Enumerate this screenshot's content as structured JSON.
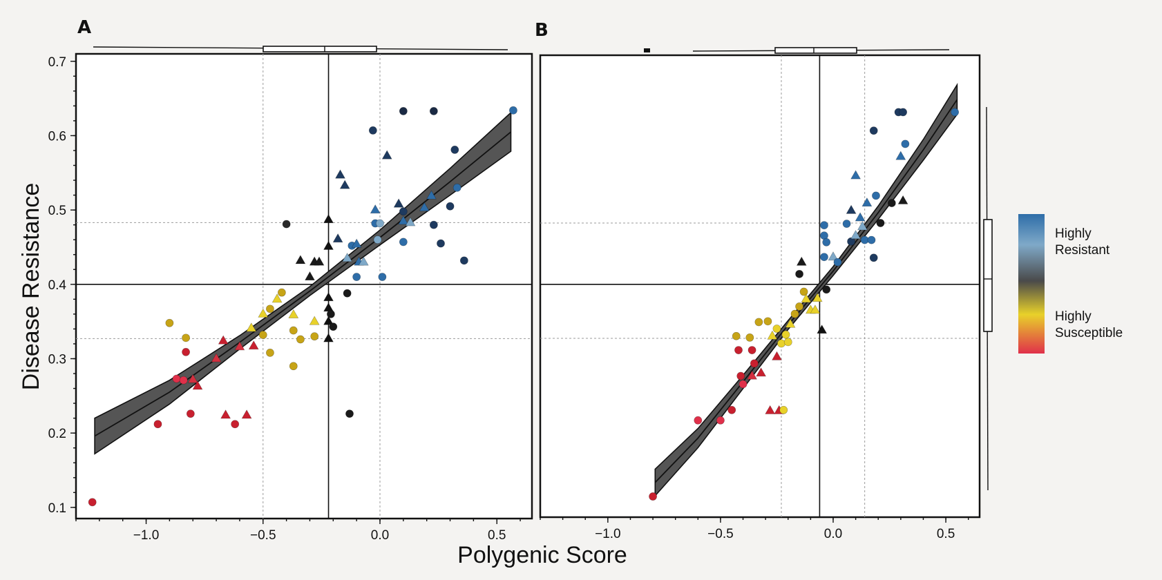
{
  "figure": {
    "xlabel": "Polygenic Score",
    "ylabel": "Disease Resistance"
  },
  "legend": {
    "entries": [
      {
        "label": "Highly",
        "label2": "Resistant",
        "color": "#2e6da8"
      },
      {
        "label": "",
        "color": "#7fa9c8"
      },
      {
        "label": "",
        "color": "#4a4a4a"
      },
      {
        "label": "Highly",
        "label2": "Susceptible",
        "color": "#e8d12a"
      },
      {
        "label": "",
        "color": "#e0304a"
      }
    ]
  },
  "chart_data": [
    {
      "panel": "A",
      "type": "scatter",
      "xlim": [
        -1.3,
        0.65
      ],
      "ylim": [
        0.085,
        0.71
      ],
      "xticks": [
        "−1.0",
        "−0.5",
        "0.0",
        "0.5"
      ],
      "xtick_values": [
        -1.0,
        -0.5,
        0.0,
        0.5
      ],
      "yticks": [
        "0.1",
        "0.2",
        "0.3",
        "0.4",
        "0.5",
        "0.6",
        "0.7"
      ],
      "ytick_values": [
        0.1,
        0.2,
        0.3,
        0.4,
        0.5,
        0.6,
        0.7
      ],
      "grid_x": [
        -0.5,
        0.0
      ],
      "grid_y": [
        0.483,
        0.327
      ],
      "ref_x": -0.22,
      "ref_y": 0.4,
      "fit": {
        "x": [
          -1.22,
          -0.9,
          -0.6,
          -0.3,
          0.0,
          0.3,
          0.56
        ],
        "y": [
          0.196,
          0.255,
          0.322,
          0.391,
          0.463,
          0.538,
          0.605
        ]
      },
      "band_halfwidth": [
        0.024,
        0.016,
        0.009,
        0.006,
        0.01,
        0.018,
        0.026
      ],
      "points": [
        {
          "x": -1.23,
          "y": 0.107,
          "shape": "circle",
          "color": "#c8202f"
        },
        {
          "x": -0.95,
          "y": 0.212,
          "shape": "circle",
          "color": "#c8202f"
        },
        {
          "x": -0.81,
          "y": 0.226,
          "shape": "circle",
          "color": "#c8202f"
        },
        {
          "x": -0.62,
          "y": 0.212,
          "shape": "circle",
          "color": "#c8202f"
        },
        {
          "x": -0.66,
          "y": 0.224,
          "shape": "triangle",
          "color": "#c8202f"
        },
        {
          "x": -0.57,
          "y": 0.224,
          "shape": "triangle",
          "color": "#c8202f"
        },
        {
          "x": -0.87,
          "y": 0.273,
          "shape": "circle",
          "color": "#e0304a"
        },
        {
          "x": -0.84,
          "y": 0.271,
          "shape": "circle",
          "color": "#e0304a"
        },
        {
          "x": -0.8,
          "y": 0.272,
          "shape": "triangle",
          "color": "#d33040"
        },
        {
          "x": -0.78,
          "y": 0.263,
          "shape": "triangle",
          "color": "#c8202f"
        },
        {
          "x": -0.83,
          "y": 0.309,
          "shape": "circle",
          "color": "#c8202f"
        },
        {
          "x": -0.7,
          "y": 0.3,
          "shape": "triangle",
          "color": "#d33040"
        },
        {
          "x": -0.67,
          "y": 0.324,
          "shape": "triangle",
          "color": "#c8202f"
        },
        {
          "x": -0.6,
          "y": 0.316,
          "shape": "triangle",
          "color": "#d33040"
        },
        {
          "x": -0.54,
          "y": 0.317,
          "shape": "triangle",
          "color": "#c8202f"
        },
        {
          "x": -0.9,
          "y": 0.348,
          "shape": "circle",
          "color": "#c7a417"
        },
        {
          "x": -0.83,
          "y": 0.328,
          "shape": "circle",
          "color": "#c7a417"
        },
        {
          "x": -0.55,
          "y": 0.341,
          "shape": "triangle",
          "color": "#e8d12a"
        },
        {
          "x": -0.5,
          "y": 0.332,
          "shape": "circle",
          "color": "#c7a417"
        },
        {
          "x": -0.47,
          "y": 0.308,
          "shape": "circle",
          "color": "#c7a417"
        },
        {
          "x": -0.5,
          "y": 0.36,
          "shape": "triangle",
          "color": "#e8d12a"
        },
        {
          "x": -0.47,
          "y": 0.367,
          "shape": "circle",
          "color": "#c7a417"
        },
        {
          "x": -0.44,
          "y": 0.38,
          "shape": "triangle",
          "color": "#e8d12a"
        },
        {
          "x": -0.42,
          "y": 0.389,
          "shape": "circle",
          "color": "#c7a417"
        },
        {
          "x": -0.37,
          "y": 0.359,
          "shape": "triangle",
          "color": "#e8d12a"
        },
        {
          "x": -0.37,
          "y": 0.338,
          "shape": "circle",
          "color": "#c7a417"
        },
        {
          "x": -0.34,
          "y": 0.326,
          "shape": "circle",
          "color": "#c7a417"
        },
        {
          "x": -0.37,
          "y": 0.29,
          "shape": "circle",
          "color": "#c7a417"
        },
        {
          "x": -0.28,
          "y": 0.35,
          "shape": "triangle",
          "color": "#e8d12a"
        },
        {
          "x": -0.28,
          "y": 0.33,
          "shape": "circle",
          "color": "#c7a417"
        },
        {
          "x": -0.4,
          "y": 0.481,
          "shape": "circle",
          "color": "#2a2a2a"
        },
        {
          "x": -0.34,
          "y": 0.432,
          "shape": "triangle",
          "color": "#1a1a1a"
        },
        {
          "x": -0.28,
          "y": 0.43,
          "shape": "triangle",
          "color": "#1a1a1a"
        },
        {
          "x": -0.26,
          "y": 0.43,
          "shape": "triangle",
          "color": "#1a1a1a"
        },
        {
          "x": -0.3,
          "y": 0.41,
          "shape": "triangle",
          "color": "#1a1a1a"
        },
        {
          "x": -0.22,
          "y": 0.487,
          "shape": "triangle",
          "color": "#111"
        },
        {
          "x": -0.22,
          "y": 0.451,
          "shape": "triangle",
          "color": "#111"
        },
        {
          "x": -0.22,
          "y": 0.382,
          "shape": "triangle",
          "color": "#111"
        },
        {
          "x": -0.22,
          "y": 0.368,
          "shape": "triangle",
          "color": "#111"
        },
        {
          "x": -0.22,
          "y": 0.35,
          "shape": "triangle",
          "color": "#111"
        },
        {
          "x": -0.22,
          "y": 0.327,
          "shape": "triangle",
          "color": "#111"
        },
        {
          "x": -0.21,
          "y": 0.36,
          "shape": "circle",
          "color": "#1a1a1a"
        },
        {
          "x": -0.2,
          "y": 0.343,
          "shape": "circle",
          "color": "#1a1a1a"
        },
        {
          "x": -0.14,
          "y": 0.388,
          "shape": "circle",
          "color": "#1a1a1a"
        },
        {
          "x": -0.13,
          "y": 0.226,
          "shape": "circle",
          "color": "#1a1a1a"
        },
        {
          "x": -0.17,
          "y": 0.547,
          "shape": "triangle",
          "color": "#1e3a5f"
        },
        {
          "x": -0.15,
          "y": 0.533,
          "shape": "triangle",
          "color": "#1e3a5f"
        },
        {
          "x": -0.18,
          "y": 0.461,
          "shape": "triangle",
          "color": "#1e3a5f"
        },
        {
          "x": -0.12,
          "y": 0.452,
          "shape": "circle",
          "color": "#2e6da8"
        },
        {
          "x": -0.1,
          "y": 0.454,
          "shape": "triangle",
          "color": "#2e6da8"
        },
        {
          "x": -0.14,
          "y": 0.435,
          "shape": "triangle",
          "color": "#7fa9c8"
        },
        {
          "x": -0.09,
          "y": 0.43,
          "shape": "triangle",
          "color": "#2e6da8"
        },
        {
          "x": -0.07,
          "y": 0.43,
          "shape": "triangle",
          "color": "#7fa9c8"
        },
        {
          "x": -0.1,
          "y": 0.41,
          "shape": "circle",
          "color": "#2e6da8"
        },
        {
          "x": 0.01,
          "y": 0.41,
          "shape": "circle",
          "color": "#2e6da8"
        },
        {
          "x": -0.03,
          "y": 0.607,
          "shape": "circle",
          "color": "#1e3a5f"
        },
        {
          "x": 0.1,
          "y": 0.633,
          "shape": "circle",
          "color": "#1a2a44"
        },
        {
          "x": 0.23,
          "y": 0.633,
          "shape": "circle",
          "color": "#1a2a44"
        },
        {
          "x": 0.03,
          "y": 0.573,
          "shape": "triangle",
          "color": "#1e3a5f"
        },
        {
          "x": 0.32,
          "y": 0.581,
          "shape": "circle",
          "color": "#1e3a5f"
        },
        {
          "x": 0.57,
          "y": 0.634,
          "shape": "circle",
          "color": "#2e6da8"
        },
        {
          "x": -0.02,
          "y": 0.5,
          "shape": "triangle",
          "color": "#2e6da8"
        },
        {
          "x": -0.02,
          "y": 0.482,
          "shape": "circle",
          "color": "#2e6da8"
        },
        {
          "x": 0.0,
          "y": 0.482,
          "shape": "circle",
          "color": "#7fa9c8"
        },
        {
          "x": -0.01,
          "y": 0.46,
          "shape": "circle",
          "color": "#7fa9c8"
        },
        {
          "x": 0.08,
          "y": 0.508,
          "shape": "triangle",
          "color": "#1e3a5f"
        },
        {
          "x": 0.1,
          "y": 0.498,
          "shape": "circle",
          "color": "#1e3a5f"
        },
        {
          "x": 0.1,
          "y": 0.485,
          "shape": "triangle",
          "color": "#2e6da8"
        },
        {
          "x": 0.13,
          "y": 0.483,
          "shape": "triangle",
          "color": "#7fa9c8"
        },
        {
          "x": 0.1,
          "y": 0.457,
          "shape": "circle",
          "color": "#2e6da8"
        },
        {
          "x": 0.19,
          "y": 0.503,
          "shape": "triangle",
          "color": "#2e6da8"
        },
        {
          "x": 0.22,
          "y": 0.519,
          "shape": "triangle",
          "color": "#2e6da8"
        },
        {
          "x": 0.23,
          "y": 0.48,
          "shape": "circle",
          "color": "#1e3a5f"
        },
        {
          "x": 0.26,
          "y": 0.455,
          "shape": "circle",
          "color": "#1e3a5f"
        },
        {
          "x": 0.3,
          "y": 0.505,
          "shape": "circle",
          "color": "#1e3a5f"
        },
        {
          "x": 0.33,
          "y": 0.53,
          "shape": "circle",
          "color": "#2e6da8"
        },
        {
          "x": 0.36,
          "y": 0.432,
          "shape": "circle",
          "color": "#1e3a5f"
        }
      ]
    },
    {
      "panel": "B",
      "type": "scatter",
      "xlim": [
        -1.3,
        0.65
      ],
      "ylim": [
        0.085,
        0.71
      ],
      "xticks": [
        "−1.0",
        "−0.5",
        "0.0",
        "0.5"
      ],
      "xtick_values": [
        -1.0,
        -0.5,
        0.0,
        0.5
      ],
      "grid_x": [
        -0.23,
        0.14
      ],
      "grid_y": [
        0.483,
        0.327
      ],
      "ref_x": -0.06,
      "ref_y": 0.4,
      "fit": {
        "x": [
          -0.79,
          -0.6,
          -0.4,
          -0.2,
          0.0,
          0.2,
          0.4,
          0.55
        ],
        "y": [
          0.132,
          0.192,
          0.268,
          0.345,
          0.418,
          0.497,
          0.582,
          0.65
        ]
      },
      "band_halfwidth": [
        0.018,
        0.013,
        0.009,
        0.006,
        0.006,
        0.009,
        0.014,
        0.02
      ],
      "points": [
        {
          "x": -0.8,
          "y": 0.113,
          "shape": "circle",
          "color": "#c8202f"
        },
        {
          "x": -0.6,
          "y": 0.216,
          "shape": "circle",
          "color": "#e0304a"
        },
        {
          "x": -0.5,
          "y": 0.216,
          "shape": "circle",
          "color": "#e0304a"
        },
        {
          "x": -0.45,
          "y": 0.23,
          "shape": "circle",
          "color": "#c8202f"
        },
        {
          "x": -0.41,
          "y": 0.276,
          "shape": "circle",
          "color": "#c8202f"
        },
        {
          "x": -0.4,
          "y": 0.265,
          "shape": "circle",
          "color": "#e0304a"
        },
        {
          "x": -0.36,
          "y": 0.276,
          "shape": "triangle",
          "color": "#d33040"
        },
        {
          "x": -0.35,
          "y": 0.293,
          "shape": "circle",
          "color": "#c8202f"
        },
        {
          "x": -0.32,
          "y": 0.28,
          "shape": "triangle",
          "color": "#c8202f"
        },
        {
          "x": -0.42,
          "y": 0.311,
          "shape": "circle",
          "color": "#c8202f"
        },
        {
          "x": -0.36,
          "y": 0.311,
          "shape": "circle",
          "color": "#c8202f"
        },
        {
          "x": -0.28,
          "y": 0.229,
          "shape": "triangle",
          "color": "#c8202f"
        },
        {
          "x": -0.24,
          "y": 0.229,
          "shape": "triangle",
          "color": "#c8202f"
        },
        {
          "x": -0.22,
          "y": 0.23,
          "shape": "circle",
          "color": "#e8d12a"
        },
        {
          "x": -0.25,
          "y": 0.302,
          "shape": "triangle",
          "color": "#c8202f"
        },
        {
          "x": -0.43,
          "y": 0.33,
          "shape": "circle",
          "color": "#c7a417"
        },
        {
          "x": -0.37,
          "y": 0.328,
          "shape": "circle",
          "color": "#c7a417"
        },
        {
          "x": -0.33,
          "y": 0.349,
          "shape": "circle",
          "color": "#c7a417"
        },
        {
          "x": -0.29,
          "y": 0.35,
          "shape": "circle",
          "color": "#c7a417"
        },
        {
          "x": -0.27,
          "y": 0.33,
          "shape": "triangle",
          "color": "#e8d12a"
        },
        {
          "x": -0.25,
          "y": 0.34,
          "shape": "circle",
          "color": "#e8d12a"
        },
        {
          "x": -0.23,
          "y": 0.32,
          "shape": "circle",
          "color": "#e8d12a"
        },
        {
          "x": -0.21,
          "y": 0.332,
          "shape": "circle",
          "color": "#e8d12a"
        },
        {
          "x": -0.2,
          "y": 0.322,
          "shape": "circle",
          "color": "#e8d12a"
        },
        {
          "x": -0.19,
          "y": 0.346,
          "shape": "triangle",
          "color": "#e8d12a"
        },
        {
          "x": -0.17,
          "y": 0.36,
          "shape": "circle",
          "color": "#c7a417"
        },
        {
          "x": -0.15,
          "y": 0.37,
          "shape": "circle",
          "color": "#c7a417"
        },
        {
          "x": -0.13,
          "y": 0.39,
          "shape": "circle",
          "color": "#c7a417"
        },
        {
          "x": -0.12,
          "y": 0.38,
          "shape": "triangle",
          "color": "#e8d12a"
        },
        {
          "x": -0.1,
          "y": 0.365,
          "shape": "triangle",
          "color": "#e8d12a"
        },
        {
          "x": -0.08,
          "y": 0.365,
          "shape": "triangle",
          "color": "#e8d12a"
        },
        {
          "x": -0.07,
          "y": 0.381,
          "shape": "triangle",
          "color": "#e8d12a"
        },
        {
          "x": -0.05,
          "y": 0.338,
          "shape": "triangle",
          "color": "#111"
        },
        {
          "x": -0.03,
          "y": 0.393,
          "shape": "circle",
          "color": "#1a1a1a"
        },
        {
          "x": -0.14,
          "y": 0.43,
          "shape": "triangle",
          "color": "#1a1a1a"
        },
        {
          "x": -0.15,
          "y": 0.414,
          "shape": "circle",
          "color": "#1a1a1a"
        },
        {
          "x": -0.04,
          "y": 0.48,
          "shape": "circle",
          "color": "#2e6da8"
        },
        {
          "x": -0.04,
          "y": 0.466,
          "shape": "circle",
          "color": "#2e6da8"
        },
        {
          "x": -0.03,
          "y": 0.457,
          "shape": "circle",
          "color": "#2e6da8"
        },
        {
          "x": -0.04,
          "y": 0.437,
          "shape": "circle",
          "color": "#2e6da8"
        },
        {
          "x": 0.0,
          "y": 0.437,
          "shape": "triangle",
          "color": "#7fa9c8"
        },
        {
          "x": 0.02,
          "y": 0.43,
          "shape": "circle",
          "color": "#2e6da8"
        },
        {
          "x": 0.06,
          "y": 0.482,
          "shape": "circle",
          "color": "#2e6da8"
        },
        {
          "x": 0.08,
          "y": 0.458,
          "shape": "circle",
          "color": "#1e3a5f"
        },
        {
          "x": 0.08,
          "y": 0.5,
          "shape": "triangle",
          "color": "#1e3a5f"
        },
        {
          "x": 0.1,
          "y": 0.466,
          "shape": "triangle",
          "color": "#7fa9c8"
        },
        {
          "x": 0.12,
          "y": 0.49,
          "shape": "triangle",
          "color": "#2e6da8"
        },
        {
          "x": 0.13,
          "y": 0.478,
          "shape": "triangle",
          "color": "#7fa9c8"
        },
        {
          "x": 0.14,
          "y": 0.46,
          "shape": "circle",
          "color": "#2e6da8"
        },
        {
          "x": 0.17,
          "y": 0.46,
          "shape": "circle",
          "color": "#2e6da8"
        },
        {
          "x": 0.15,
          "y": 0.51,
          "shape": "triangle",
          "color": "#2e6da8"
        },
        {
          "x": 0.19,
          "y": 0.52,
          "shape": "circle",
          "color": "#2e6da8"
        },
        {
          "x": 0.1,
          "y": 0.547,
          "shape": "triangle",
          "color": "#2e6da8"
        },
        {
          "x": 0.18,
          "y": 0.436,
          "shape": "circle",
          "color": "#1e3a5f"
        },
        {
          "x": 0.21,
          "y": 0.483,
          "shape": "circle",
          "color": "#1a1a1a"
        },
        {
          "x": 0.26,
          "y": 0.51,
          "shape": "circle",
          "color": "#1a1a1a"
        },
        {
          "x": 0.31,
          "y": 0.513,
          "shape": "triangle",
          "color": "#1a1a1a"
        },
        {
          "x": 0.18,
          "y": 0.608,
          "shape": "circle",
          "color": "#1e3a5f"
        },
        {
          "x": 0.3,
          "y": 0.573,
          "shape": "triangle",
          "color": "#2e6da8"
        },
        {
          "x": 0.32,
          "y": 0.59,
          "shape": "circle",
          "color": "#2e6da8"
        },
        {
          "x": 0.29,
          "y": 0.633,
          "shape": "circle",
          "color": "#1e3a5f"
        },
        {
          "x": 0.31,
          "y": 0.633,
          "shape": "circle",
          "color": "#1e3a5f"
        },
        {
          "x": 0.54,
          "y": 0.633,
          "shape": "circle",
          "color": "#2e6da8"
        }
      ]
    }
  ]
}
